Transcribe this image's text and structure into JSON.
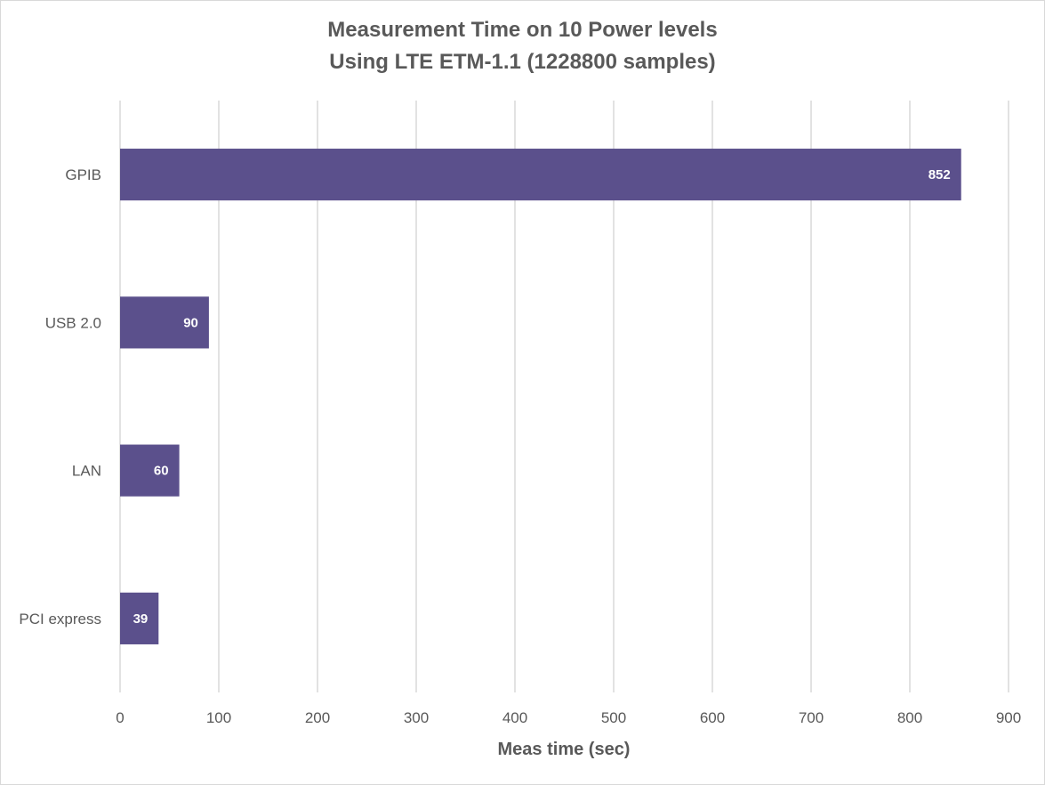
{
  "chart_data": {
    "type": "bar",
    "orientation": "horizontal",
    "title": "Measurement Time on 10 Power levels",
    "subtitle": "Using LTE ETM-1.1 (1228800 samples)",
    "xlabel": "Meas time (sec)",
    "ylabel": "",
    "categories": [
      "GPIB",
      "USB 2.0",
      "LAN",
      "PCI express"
    ],
    "values": [
      852,
      90,
      60,
      39
    ],
    "xlim": [
      0,
      900
    ],
    "xticks": [
      0,
      100,
      200,
      300,
      400,
      500,
      600,
      700,
      800,
      900
    ],
    "grid": true,
    "legend": "none",
    "bar_color": "#5b508c",
    "data_labels": true
  }
}
